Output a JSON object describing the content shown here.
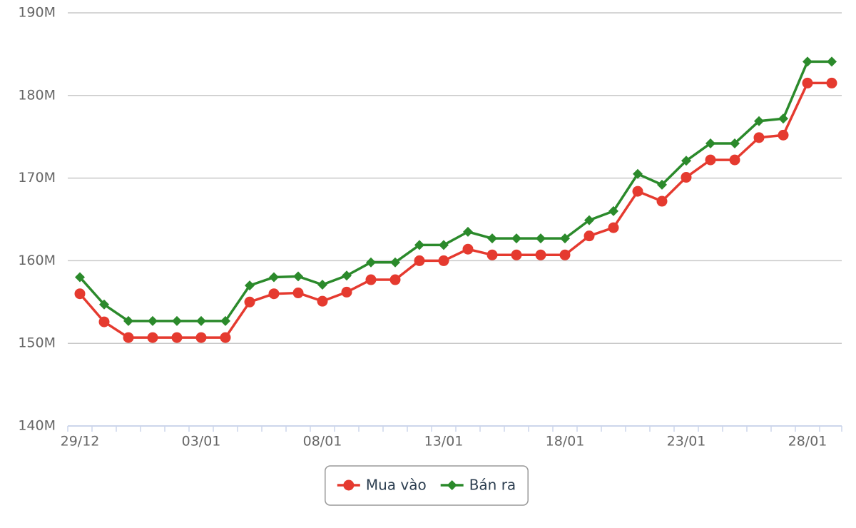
{
  "chart_data": {
    "type": "line",
    "categories": [
      "29/12",
      null,
      null,
      null,
      null,
      "03/01",
      null,
      null,
      null,
      null,
      "08/01",
      null,
      null,
      null,
      null,
      "13/01",
      null,
      null,
      null,
      null,
      "18/01",
      null,
      null,
      null,
      null,
      "23/01",
      null,
      null,
      null,
      null,
      "28/01",
      null
    ],
    "series": [
      {
        "name": "Mua vào",
        "color": "#e53a2f",
        "marker": "circle",
        "values": [
          156000000,
          152600000,
          150700000,
          150700000,
          150700000,
          150700000,
          150700000,
          155000000,
          156000000,
          156100000,
          155100000,
          156200000,
          157700000,
          157700000,
          160000000,
          160000000,
          161400000,
          160700000,
          160700000,
          160700000,
          160700000,
          163000000,
          164000000,
          168400000,
          167200000,
          170100000,
          172200000,
          172200000,
          174900000,
          175200000,
          181500000,
          181500000
        ]
      },
      {
        "name": "Bán ra",
        "color": "#2b8a2b",
        "marker": "diamond",
        "values": [
          158000000,
          154700000,
          152700000,
          152700000,
          152700000,
          152700000,
          152700000,
          157000000,
          158000000,
          158100000,
          157100000,
          158200000,
          159800000,
          159800000,
          161900000,
          161900000,
          163500000,
          162700000,
          162700000,
          162700000,
          162700000,
          164900000,
          166000000,
          170500000,
          169200000,
          172100000,
          174200000,
          174200000,
          176900000,
          177200000,
          184100000,
          184100000
        ]
      }
    ],
    "ylim": [
      140000000,
      190000000
    ],
    "yticks": [
      {
        "value": 140000000,
        "label": "140M"
      },
      {
        "value": 150000000,
        "label": "150M"
      },
      {
        "value": 160000000,
        "label": "160M"
      },
      {
        "value": 170000000,
        "label": "170M"
      },
      {
        "value": 180000000,
        "label": "180M"
      },
      {
        "value": 190000000,
        "label": "190M"
      }
    ],
    "grid": true,
    "legend": "bottom"
  }
}
